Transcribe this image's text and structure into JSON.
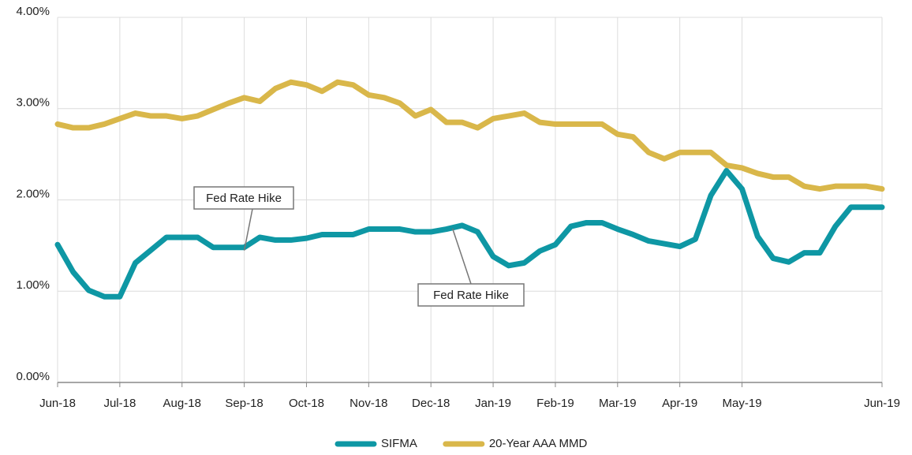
{
  "chart_data": {
    "type": "line",
    "categories": [
      "Jun-18",
      null,
      null,
      null,
      "Jul-18",
      null,
      null,
      null,
      "Aug-18",
      null,
      null,
      null,
      "Sep-18",
      null,
      null,
      null,
      "Oct-18",
      null,
      null,
      null,
      "Nov-18",
      null,
      null,
      null,
      "Dec-18",
      null,
      null,
      null,
      "Jan-19",
      null,
      null,
      null,
      "Feb-19",
      null,
      null,
      null,
      "Mar-19",
      null,
      null,
      null,
      "Apr-19",
      null,
      null,
      null,
      "May-19",
      null,
      null,
      null,
      null,
      null,
      null,
      null,
      null,
      "Jun-19"
    ],
    "series": [
      {
        "name": "SIFMA",
        "color": "#0e97a4",
        "values": [
          1.51,
          1.21,
          1.01,
          0.94,
          0.94,
          1.31,
          1.45,
          1.59,
          1.59,
          1.59,
          1.48,
          1.48,
          1.48,
          1.59,
          1.56,
          1.56,
          1.58,
          1.62,
          1.62,
          1.62,
          1.68,
          1.68,
          1.68,
          1.65,
          1.65,
          1.68,
          1.72,
          1.65,
          1.38,
          1.28,
          1.31,
          1.44,
          1.51,
          1.71,
          1.75,
          1.75,
          1.68,
          1.62,
          1.55,
          1.52,
          1.49,
          1.57,
          2.05,
          2.32,
          2.12,
          1.6,
          1.36,
          1.32,
          1.42,
          1.42,
          1.71,
          1.92,
          1.92,
          1.92
        ]
      },
      {
        "name": "20-Year AAA MMD",
        "color": "#d9b74a",
        "values": [
          2.83,
          2.79,
          2.79,
          2.83,
          2.89,
          2.95,
          2.92,
          2.92,
          2.89,
          2.92,
          2.99,
          3.06,
          3.12,
          3.08,
          3.22,
          3.29,
          3.26,
          3.19,
          3.29,
          3.26,
          3.15,
          3.12,
          3.06,
          2.92,
          2.99,
          2.85,
          2.85,
          2.79,
          2.89,
          2.92,
          2.95,
          2.85,
          2.83,
          2.83,
          2.83,
          2.83,
          2.72,
          2.69,
          2.52,
          2.45,
          2.52,
          2.52,
          2.52,
          2.38,
          2.35,
          2.29,
          2.25,
          2.25,
          2.15,
          2.12,
          2.15,
          2.15,
          2.15,
          2.12
        ]
      }
    ],
    "ylim": [
      0,
      4
    ],
    "yticks": [
      {
        "value": 0,
        "label": "0.00%"
      },
      {
        "value": 1,
        "label": "1.00%"
      },
      {
        "value": 2,
        "label": "2.00%"
      },
      {
        "value": 3,
        "label": "3.00%"
      },
      {
        "value": 4,
        "label": "4.00%"
      }
    ],
    "grid": true,
    "legend": "bottom",
    "annotations": [
      {
        "text": "Fed Rate Hike"
      },
      {
        "text": "Fed Rate Hike"
      }
    ]
  }
}
